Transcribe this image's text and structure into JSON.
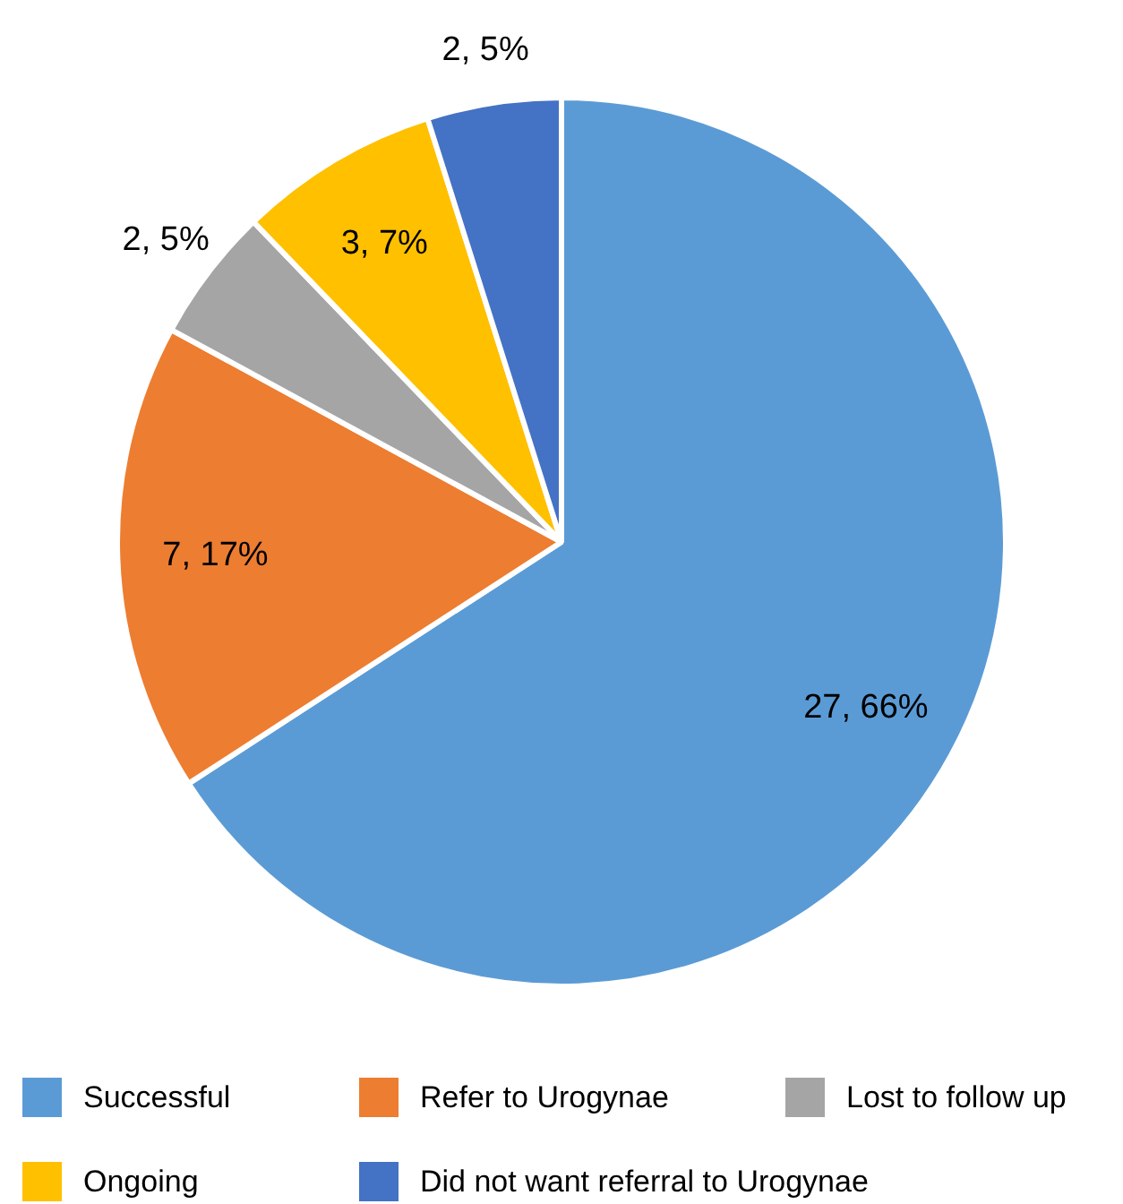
{
  "chart_data": {
    "type": "pie",
    "categories": [
      "Successful",
      "Refer to Urogynae",
      "Lost to follow up",
      "Ongoing",
      "Did not want referral to Urogynae"
    ],
    "values": [
      27,
      7,
      2,
      3,
      2
    ],
    "colors": [
      "#5b9bd5",
      "#ed7d31",
      "#a5a5a5",
      "#ffc000",
      "#4472c4"
    ],
    "value_labels": [
      "27, 66%",
      "7, 17%",
      "2, 5%",
      "3, 7%",
      "2, 5%"
    ],
    "legend": "bottom"
  }
}
